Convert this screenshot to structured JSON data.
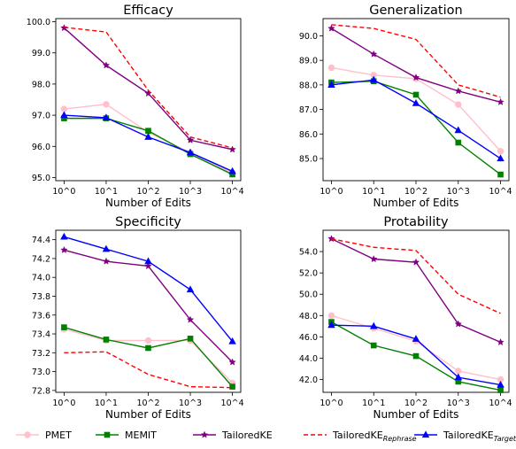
{
  "legend": {
    "pmet": "PMET",
    "memit": "MEMIT",
    "tailored": "TailoredKE",
    "rephrase_base": "TailoredKE",
    "rephrase_sub": "Rephrase",
    "targeted_base": "TailoredKE",
    "targeted_sub": "Targeted"
  },
  "colors": {
    "pmet": "#ffc0cb",
    "memit": "#008000",
    "tailored": "#800080",
    "rephrase": "#ff0000",
    "targeted": "#0000ff"
  },
  "chart_data": [
    {
      "type": "line",
      "title": "Efficacy",
      "xlabel": "Number of Edits",
      "ylabel": "",
      "categories": [
        "10^0",
        "10^1",
        "10^2",
        "10^3",
        "10^4"
      ],
      "ylim": [
        94.9,
        100.1
      ],
      "yticks": [
        95.0,
        96.0,
        97.0,
        98.0,
        99.0,
        100.0
      ],
      "series": [
        {
          "key": "pmet",
          "values": [
            97.2,
            97.35,
            96.45,
            95.8,
            95.15
          ]
        },
        {
          "key": "memit",
          "values": [
            96.9,
            96.9,
            96.5,
            95.75,
            95.1
          ]
        },
        {
          "key": "tailored",
          "values": [
            99.8,
            98.6,
            97.7,
            96.2,
            95.9
          ]
        },
        {
          "key": "rephrase",
          "values": [
            99.82,
            99.67,
            97.8,
            96.3,
            95.95
          ]
        },
        {
          "key": "targeted",
          "values": [
            97.0,
            96.92,
            96.3,
            95.8,
            95.2
          ]
        }
      ]
    },
    {
      "type": "line",
      "title": "Generalization",
      "xlabel": "Number of Edits",
      "ylabel": "",
      "categories": [
        "10^0",
        "10^1",
        "10^2",
        "10^3",
        "10^4"
      ],
      "ylim": [
        84.1,
        90.7
      ],
      "yticks": [
        85.0,
        86.0,
        87.0,
        88.0,
        89.0,
        90.0
      ],
      "series": [
        {
          "key": "pmet",
          "values": [
            88.7,
            88.4,
            88.25,
            87.2,
            85.3
          ]
        },
        {
          "key": "memit",
          "values": [
            88.1,
            88.15,
            87.6,
            85.65,
            84.35
          ]
        },
        {
          "key": "tailored",
          "values": [
            90.3,
            89.25,
            88.3,
            87.75,
            87.3
          ]
        },
        {
          "key": "rephrase",
          "values": [
            90.45,
            90.3,
            89.85,
            88.0,
            87.5
          ]
        },
        {
          "key": "targeted",
          "values": [
            88.0,
            88.2,
            87.25,
            86.15,
            85.0
          ]
        }
      ]
    },
    {
      "type": "line",
      "title": "Specificity",
      "xlabel": "Number of Edits",
      "ylabel": "",
      "categories": [
        "10^0",
        "10^1",
        "10^2",
        "10^3",
        "10^4"
      ],
      "ylim": [
        72.78,
        74.5
      ],
      "yticks": [
        72.8,
        73.0,
        73.2,
        73.4,
        73.6,
        73.8,
        74.0,
        74.2,
        74.4
      ],
      "series": [
        {
          "key": "pmet",
          "values": [
            73.45,
            73.33,
            73.33,
            73.33,
            72.88
          ]
        },
        {
          "key": "memit",
          "values": [
            73.47,
            73.34,
            73.25,
            73.35,
            72.84
          ]
        },
        {
          "key": "tailored",
          "values": [
            74.29,
            74.17,
            74.12,
            73.55,
            73.1
          ]
        },
        {
          "key": "rephrase",
          "values": [
            73.2,
            73.21,
            72.97,
            72.84,
            72.83
          ]
        },
        {
          "key": "targeted",
          "values": [
            74.43,
            74.3,
            74.17,
            73.87,
            73.32
          ]
        }
      ]
    },
    {
      "type": "line",
      "title": "Protability",
      "xlabel": "Number of Edits",
      "ylabel": "",
      "categories": [
        "10^0",
        "10^1",
        "10^2",
        "10^3",
        "10^4"
      ],
      "ylim": [
        40.8,
        56.0
      ],
      "yticks": [
        42.0,
        44.0,
        46.0,
        48.0,
        50.0,
        52.0,
        54.0
      ],
      "series": [
        {
          "key": "pmet",
          "values": [
            48.0,
            46.8,
            45.6,
            42.8,
            42.0
          ]
        },
        {
          "key": "memit",
          "values": [
            47.4,
            45.2,
            44.2,
            41.8,
            41.0
          ]
        },
        {
          "key": "tailored",
          "values": [
            55.2,
            53.3,
            53.0,
            47.2,
            45.5
          ]
        },
        {
          "key": "rephrase",
          "values": [
            55.2,
            54.4,
            54.1,
            50.0,
            48.2
          ]
        },
        {
          "key": "targeted",
          "values": [
            47.1,
            47.0,
            45.8,
            42.2,
            41.5
          ]
        }
      ]
    }
  ]
}
